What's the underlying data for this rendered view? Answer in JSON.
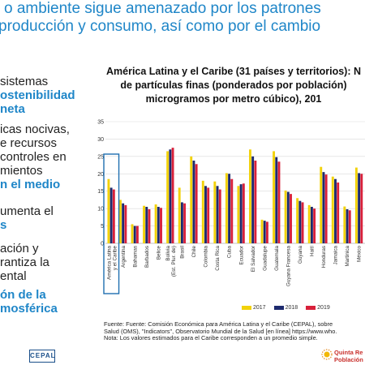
{
  "header": {
    "line1": "o ambiente sigue amenazado por los patrones",
    "line2": "producción y consumo, así como por el cambio"
  },
  "left_text": {
    "l1": "sistemas",
    "l2": "ostenibilidad",
    "l3": "neta",
    "l4": "icas nocivas,",
    "l5": "e recursos",
    "l6": "controles en",
    "l7": "mientos",
    "l8": "n el medio",
    "l9": "umenta el",
    "l10": "s",
    "l11": "ación y",
    "l12": "rantiza la",
    "l13": "ental",
    "l14": "ón de la",
    "l15": "mosférica"
  },
  "chart_data": {
    "type": "bar",
    "title_lines": [
      "América Latina y el Caribe (31 países y territorios): N",
      "de partículas finas (ponderados por población)",
      "microgramos por metro cúbico), 201"
    ],
    "ylim": [
      0,
      35
    ],
    "yticks": [
      0,
      5,
      10,
      15,
      20,
      25,
      30,
      35
    ],
    "grid": true,
    "legend_position": "bottom-right",
    "categories": [
      "América Latina y el Caribe",
      "Argentina",
      "Bahamas",
      "Barbados",
      "Belice",
      "Bolivia (Est. Plur. de)",
      "Brasil",
      "Chile",
      "Colombia",
      "Costa Rica",
      "Cuba",
      "Ecuador",
      "El Salvador",
      "Guadalupe",
      "Guatemala",
      "Guyana Francesa",
      "Guyana",
      "Haití",
      "Honduras",
      "Jamaica",
      "Martinica",
      "México"
    ],
    "highlight_category": "América Latina y el Caribe",
    "series": [
      {
        "name": "2017",
        "color": "#f2d20a",
        "values": [
          18.5,
          12.5,
          5.5,
          10.8,
          11.2,
          26.5,
          16.0,
          25.0,
          18.0,
          17.8,
          20.2,
          16.5,
          27.0,
          6.8,
          26.5,
          15.2,
          13.0,
          11.0,
          22.0,
          19.2,
          10.6,
          21.8
        ]
      },
      {
        "name": "2018",
        "color": "#1d2a6e",
        "values": [
          16.0,
          11.5,
          5.0,
          10.5,
          10.5,
          27.0,
          11.8,
          23.8,
          16.5,
          16.5,
          20.0,
          17.0,
          25.0,
          6.5,
          24.8,
          14.8,
          12.2,
          10.5,
          20.5,
          18.5,
          9.8,
          20.2
        ]
      },
      {
        "name": "2019",
        "color": "#d8203a",
        "values": [
          15.5,
          11.0,
          5.0,
          9.8,
          10.2,
          27.5,
          11.5,
          22.8,
          16.0,
          15.5,
          18.5,
          17.2,
          23.8,
          6.2,
          23.5,
          14.2,
          11.8,
          10.0,
          19.8,
          17.5,
          9.5,
          20.0
        ]
      }
    ]
  },
  "source": {
    "line1": "Fuente:  Fuente: Comisión Económica para América Latina y el Caribe (CEPAL), sobre",
    "line2": "Salud (OMS), \"Indicators\", Observatorio Mundial de la Salud [en línea] https://www.who.",
    "line3": "Nota: Los valores estimados para el Caribe corresponden a un promedio simple."
  },
  "footer": {
    "cepal": "CEPAL",
    "brand_line1": "Quinta Re",
    "brand_line2": "Población"
  },
  "colors": {
    "accent": "#1f86c8",
    "footer_red": "#c9302c"
  }
}
